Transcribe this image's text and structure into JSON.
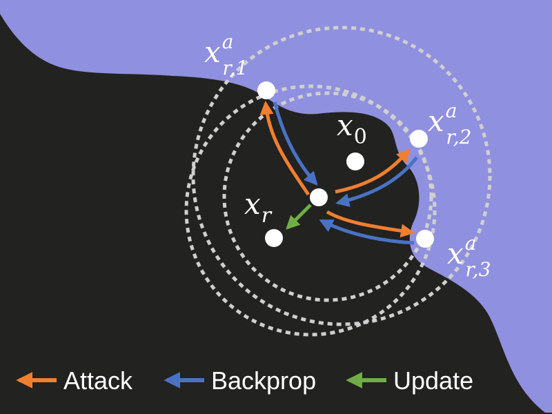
{
  "colors": {
    "background_dark": "#222220",
    "region_light": "#9090e0",
    "attack": "#f07f30",
    "backprop": "#4a72c4",
    "update": "#70ad47",
    "point": "#ffffff",
    "circle": "#cfcfcf"
  },
  "labels": {
    "x0": {
      "base": "x",
      "sub": "0"
    },
    "xr": {
      "base": "x",
      "sub": "r"
    },
    "xa1": {
      "base": "x",
      "sup": "a",
      "sub": "r,1"
    },
    "xa2": {
      "base": "x",
      "sup": "a",
      "sub": "r,2"
    },
    "xa3": {
      "base": "x",
      "sup": "a",
      "sub": "r,3"
    }
  },
  "legend": [
    {
      "label": "Attack",
      "color_key": "attack"
    },
    {
      "label": "Backprop",
      "color_key": "backprop"
    },
    {
      "label": "Update",
      "color_key": "update"
    }
  ]
}
